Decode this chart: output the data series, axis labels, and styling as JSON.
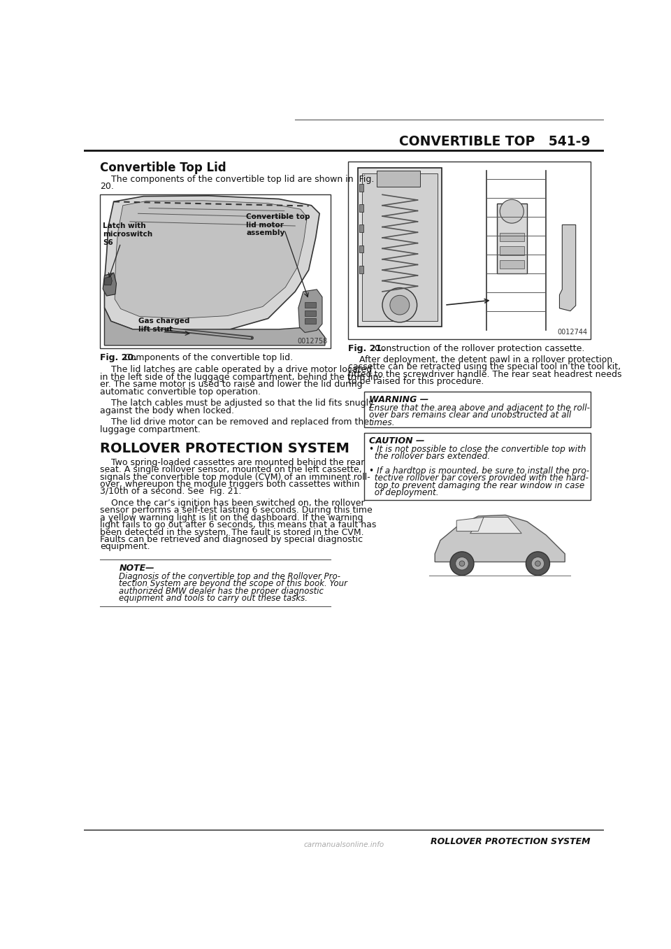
{
  "bg_color": "#ffffff",
  "text_color": "#1a1a1a",
  "header_line_color": "#111111",
  "header_text": "CONVERTIBLE TOP   541-9",
  "section_title": "Convertible Top Lid",
  "section_intro_line1": "    The components of the convertible top lid are shown in  Fig.",
  "section_intro_line2": "20.",
  "fig20_caption": "Fig. 20.  Components of the convertible top lid.",
  "fig20_number": "0012758",
  "fig20_label1": "Latch with\nmicroswitch\nS6",
  "fig20_label2": "Convertible top\nlid motor\nassembly",
  "fig20_label3": "Gas charged\nlift strut",
  "para1_lines": [
    "    The lid latches are cable operated by a drive motor located",
    "in the left side of the luggage compartment, behind the trim lin-",
    "er. The same motor is used to raise and lower the lid during",
    "automatic convertible top operation."
  ],
  "para2_lines": [
    "    The latch cables must be adjusted so that the lid fits snugly",
    "against the body when locked."
  ],
  "para3_lines": [
    "    The lid drive motor can be removed and replaced from the",
    "luggage compartment."
  ],
  "section2_title": "ROLLOVER PROTECTION SYSTEM",
  "para4_lines": [
    "    Two spring-loaded cassettes are mounted behind the rear",
    "seat. A single rollover sensor, mounted on the left cassette,",
    "signals the convertible top module (CVM) of an imminent roll-",
    "over, whereupon the module triggers both cassettes within",
    "3/10th of a second. See  Fig. 21."
  ],
  "para5_lines": [
    "    Once the car’s ignition has been switched on, the rollover",
    "sensor performs a self-test lasting 6 seconds. During this time",
    "a yellow warning light is lit on the dashboard. If the warning",
    "light fails to go out after 6 seconds, this means that a fault has",
    "been detected in the system. The fault is stored in the CVM.",
    "Faults can be retrieved and diagnosed by special diagnostic",
    "equipment."
  ],
  "note_title": "NOTE—",
  "note_lines": [
    "Diagnosis of the convertible top and the Rollover Pro-",
    "tection System are beyond the scope of this book. Your",
    "authorized BMW dealer has the proper diagnostic",
    "equipment and tools to carry out these tasks."
  ],
  "fig21_number": "0012744",
  "fig21_caption_bold": "Fig. 21.",
  "fig21_caption_rest": "  Construction of the rollover protection cassette.",
  "after_deploy_lines": [
    "    After deployment, the detent pawl in a rollover protection",
    "cassette can be retracted using the special tool in the tool kit,",
    "fitted to the screwdriver handle. The rear seat headrest needs",
    "to be raised for this procedure."
  ],
  "warning_title": "WARNING —",
  "warning_lines": [
    "Ensure that the area above and adjacent to the roll-",
    "over bars remains clear and unobstructed at all",
    "times."
  ],
  "caution_title": "CAUTION —",
  "caution_lines": [
    "• It is not possible to close the convertible top with",
    "  the rollover bars extended.",
    "",
    "• If a hardtop is mounted, be sure to install the pro-",
    "  tective rollover bar covers provided with the hard-",
    "  top to prevent damaging the rear window in case",
    "  of deployment."
  ],
  "footer_text": "ROLLOVER PROTECTION SYSTEM",
  "watermark": "carmanualsonline.info"
}
